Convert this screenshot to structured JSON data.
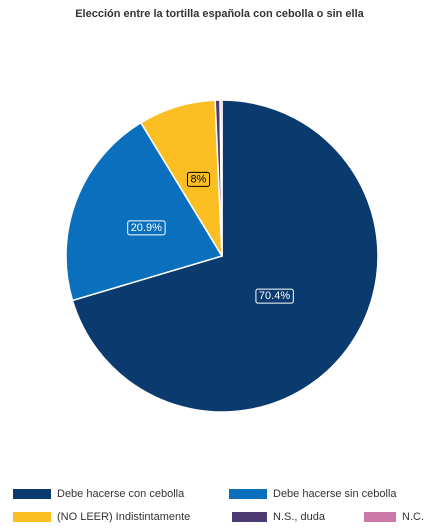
{
  "chart_data": {
    "type": "pie",
    "title": "Elección entre la tortilla española con cebolla o sin ella",
    "slices": [
      {
        "name": "Debe hacerse con cebolla",
        "value": 70.4,
        "label": "70.4%",
        "color": "#0b3a6e"
      },
      {
        "name": "Debe hacerse sin cebolla",
        "value": 20.9,
        "label": "20.9%",
        "color": "#0a6fbd"
      },
      {
        "name": "(NO LEER) Indistintamente",
        "value": 8.0,
        "label": "8%",
        "color": "#fbbf24"
      },
      {
        "name": "N.S., duda",
        "value": 0.5,
        "label": "",
        "color": "#4c3a73"
      },
      {
        "name": "N.C.",
        "value": 0.2,
        "label": "",
        "color": "#c978a8"
      }
    ],
    "legend_placement": "bottom"
  }
}
